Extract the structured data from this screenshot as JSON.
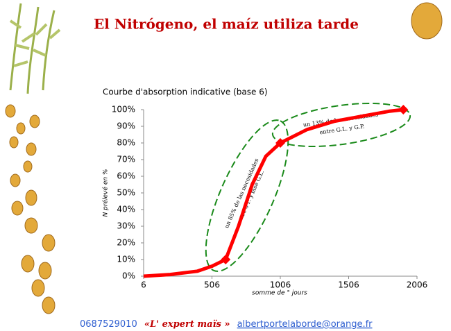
{
  "slide": {
    "title": "El Nitrógeno, el maíz utiliza tarde",
    "phone": "0687529010",
    "brand": "«L' expert maïs »",
    "email": "albertportelaborde@orange.fr"
  },
  "chart_data": {
    "type": "line",
    "title": "Courbe d'absorption indicative (base 6)",
    "y_label": "N prélevé en %",
    "x_label": "somme de ° jours",
    "xlim": [
      6,
      2006
    ],
    "xticks": [
      6,
      506,
      1006,
      1506,
      2006
    ],
    "ylim": [
      0,
      100
    ],
    "yticks": [
      {
        "value": 0,
        "label": "0%"
      },
      {
        "value": 10,
        "label": "10%"
      },
      {
        "value": 20,
        "label": "20%"
      },
      {
        "value": 30,
        "label": "30%"
      },
      {
        "value": 40,
        "label": "40%"
      },
      {
        "value": 50,
        "label": "50%"
      },
      {
        "value": 60,
        "label": "60%"
      },
      {
        "value": 70,
        "label": "70%"
      },
      {
        "value": 80,
        "label": "80%"
      },
      {
        "value": 90,
        "label": "90%"
      },
      {
        "value": 100,
        "label": "100%"
      }
    ],
    "series": [
      {
        "color": "#ff0000",
        "x": [
          6,
          200,
          400,
          506,
          606,
          700,
          800,
          900,
          1006,
          1200,
          1400,
          1600,
          1800,
          1906
        ],
        "values": [
          0,
          1,
          3,
          6,
          10,
          30,
          55,
          72,
          80,
          88,
          93,
          96,
          99,
          100
        ]
      },
      {
        "color": "#ff0000",
        "marker": "diamond",
        "x": [
          606,
          1006,
          1906
        ],
        "values": [
          10,
          80,
          100
        ]
      }
    ],
    "annotations": [
      {
        "lines": [
          "un 85% de las necesidades",
          "entre 6 F. y fase G.L."
        ],
        "color": "#1a8a1a"
      },
      {
        "lines": [
          "un 13% de las necesidades",
          "entre G.L. y G.P."
        ],
        "color": "#1a8a1a"
      }
    ]
  }
}
